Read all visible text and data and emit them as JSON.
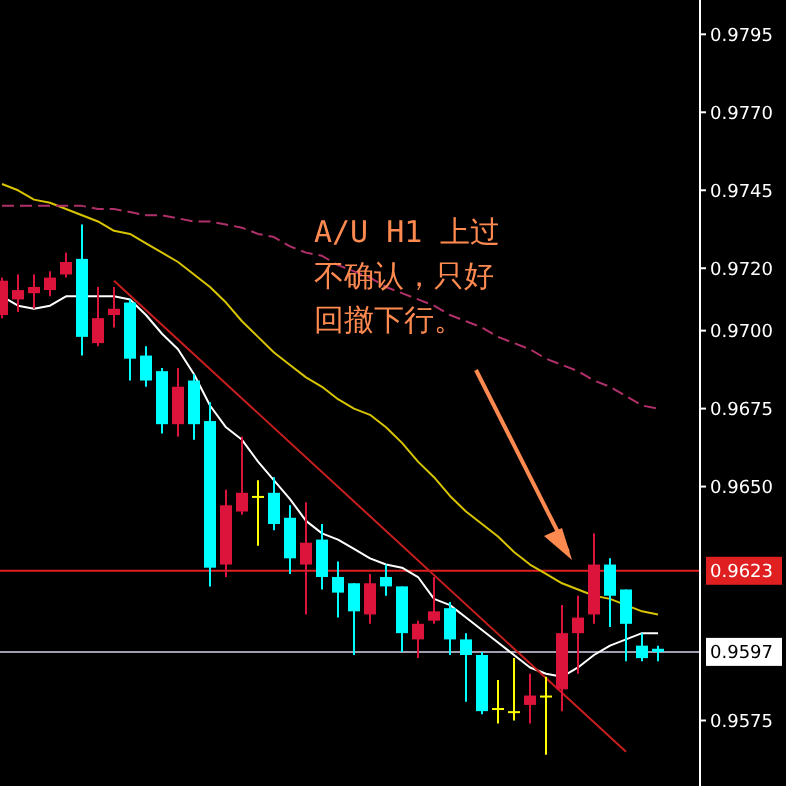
{
  "chart_data": {
    "type": "candlestick",
    "categories": [
      null,
      null,
      null,
      null,
      null,
      null,
      null,
      null,
      null,
      null,
      null,
      null,
      null,
      null,
      null,
      null,
      null,
      null,
      null,
      null,
      null,
      null,
      null,
      null,
      null,
      null,
      null,
      null,
      null,
      null,
      null,
      null,
      null,
      null,
      null,
      null,
      null,
      null,
      null,
      null,
      null,
      null
    ],
    "ohlc": [
      [
        0.9705,
        0.9717,
        0.9704,
        0.9716
      ],
      [
        0.971,
        0.9718,
        0.9706,
        0.9713
      ],
      [
        0.9712,
        0.9718,
        0.9707,
        0.9714
      ],
      [
        0.9713,
        0.9719,
        0.9711,
        0.9717
      ],
      [
        0.9718,
        0.9725,
        0.9717,
        0.9722
      ],
      [
        0.9723,
        0.9734,
        0.9692,
        0.9698
      ],
      [
        0.9696,
        0.9714,
        0.9695,
        0.9704
      ],
      [
        0.9705,
        0.9714,
        0.9701,
        0.9707
      ],
      [
        0.9709,
        0.971,
        0.9684,
        0.9691
      ],
      [
        0.9692,
        0.9695,
        0.9682,
        0.9684
      ],
      [
        0.9687,
        0.9688,
        0.9667,
        0.967
      ],
      [
        0.967,
        0.9688,
        0.9666,
        0.9682
      ],
      [
        0.9684,
        0.9686,
        0.9665,
        0.967
      ],
      [
        0.9671,
        0.9677,
        0.9618,
        0.9624
      ],
      [
        0.9625,
        0.9649,
        0.9621,
        0.9644
      ],
      [
        0.9642,
        0.9666,
        0.9641,
        0.9648
      ],
      [
        0.9647,
        0.9652,
        0.9631,
        0.9647
      ],
      [
        0.9648,
        0.9653,
        0.9636,
        0.9638
      ],
      [
        0.964,
        0.9644,
        0.9622,
        0.9627
      ],
      [
        0.9625,
        0.9645,
        0.9609,
        0.9632
      ],
      [
        0.9633,
        0.9638,
        0.9617,
        0.9621
      ],
      [
        0.9621,
        0.9626,
        0.9608,
        0.9616
      ],
      [
        0.9619,
        0.9619,
        0.9596,
        0.961
      ],
      [
        0.9609,
        0.9622,
        0.9606,
        0.9619
      ],
      [
        0.9621,
        0.9625,
        0.9615,
        0.9618
      ],
      [
        0.9618,
        0.9618,
        0.9597,
        0.9603
      ],
      [
        0.9601,
        0.9607,
        0.9595,
        0.9606
      ],
      [
        0.9607,
        0.9621,
        0.9606,
        0.961
      ],
      [
        0.9611,
        0.9613,
        0.9596,
        0.9601
      ],
      [
        0.9601,
        0.9603,
        0.9581,
        0.9596
      ],
      [
        0.9596,
        0.9597,
        0.9577,
        0.9578
      ],
      [
        0.9579,
        0.9588,
        0.9574,
        0.9579
      ],
      [
        0.9578,
        0.9595,
        0.9575,
        0.9578
      ],
      [
        0.958,
        0.959,
        0.9574,
        0.9583
      ],
      [
        0.9583,
        0.9589,
        0.9564,
        0.9583
      ],
      [
        0.9585,
        0.9612,
        0.9578,
        0.9603
      ],
      [
        0.9603,
        0.9615,
        0.959,
        0.9608
      ],
      [
        0.9609,
        0.9635,
        0.9606,
        0.9625
      ],
      [
        0.9625,
        0.9627,
        0.9605,
        0.9615
      ],
      [
        0.9617,
        0.9617,
        0.9594,
        0.9606
      ],
      [
        0.9599,
        0.9603,
        0.9594,
        0.9595
      ],
      [
        0.9598,
        0.9599,
        0.9594,
        0.9597
      ]
    ],
    "colors": [
      "#dc143c",
      "#dc143c",
      "#dc143c",
      "#dc143c",
      "#dc143c",
      "#00ffff",
      "#dc143c",
      "#dc143c",
      "#00ffff",
      "#00ffff",
      "#00ffff",
      "#dc143c",
      "#00ffff",
      "#00ffff",
      "#dc143c",
      "#dc143c",
      "#ffff00",
      "#00ffff",
      "#00ffff",
      "#dc143c",
      "#00ffff",
      "#00ffff",
      "#00ffff",
      "#dc143c",
      "#00ffff",
      "#00ffff",
      "#dc143c",
      "#dc143c",
      "#00ffff",
      "#00ffff",
      "#00ffff",
      "#ffff00",
      "#ffff00",
      "#dc143c",
      "#ffff00",
      "#dc143c",
      "#dc143c",
      "#dc143c",
      "#00ffff",
      "#00ffff",
      "#00ffff",
      "#00ffff"
    ],
    "series": [
      {
        "type": "line",
        "color": "#ffffff",
        "values": [
          0.9711,
          0.9708,
          0.9707,
          0.9708,
          0.9711,
          0.9711,
          0.9711,
          0.9711,
          0.971,
          0.9705,
          0.9699,
          0.9694,
          0.9686,
          0.9676,
          0.9669,
          0.9665,
          0.9658,
          0.9652,
          0.9646,
          0.9639,
          0.9635,
          0.9633,
          0.963,
          0.9627,
          0.9625,
          0.9624,
          0.9621,
          0.9614,
          0.9612,
          0.9608,
          0.9604,
          0.96,
          0.9596,
          0.9592,
          0.959,
          0.9589,
          0.9592,
          0.9596,
          0.9599,
          0.9601,
          0.9603,
          0.9603
        ]
      },
      {
        "type": "line",
        "color": "#d8c400",
        "values": [
          0.9747,
          0.9745,
          0.9742,
          0.9741,
          0.9739,
          0.9737,
          0.9735,
          0.9732,
          0.9731,
          0.9728,
          0.9725,
          0.9722,
          0.9718,
          0.9714,
          0.9709,
          0.9703,
          0.9698,
          0.9693,
          0.9689,
          0.9685,
          0.9682,
          0.9678,
          0.9675,
          0.9673,
          0.9669,
          0.9664,
          0.9658,
          0.9653,
          0.9647,
          0.9642,
          0.9638,
          0.9634,
          0.9629,
          0.9625,
          0.9622,
          0.9619,
          0.9617,
          0.9615,
          0.9614,
          0.9612,
          0.961,
          0.9609
        ]
      },
      {
        "type": "line",
        "color": "#b0306a",
        "line_style": "dashed",
        "values": [
          0.974,
          0.974,
          0.974,
          0.974,
          0.974,
          0.974,
          0.9739,
          0.9739,
          0.9738,
          0.9737,
          0.9737,
          0.9736,
          0.9735,
          0.9735,
          0.9734,
          0.9733,
          0.9731,
          0.973,
          0.9727,
          0.9725,
          0.9724,
          0.9721,
          0.9719,
          0.9717,
          0.9714,
          0.9712,
          0.971,
          0.9708,
          0.9705,
          0.9703,
          0.9701,
          0.9698,
          0.9696,
          0.9694,
          0.9691,
          0.9689,
          0.9687,
          0.9684,
          0.9682,
          0.9679,
          0.9676,
          0.9675
        ]
      },
      {
        "type": "line",
        "color": "#c81e1e",
        "values": [
          null,
          null,
          null,
          null,
          null,
          null,
          null,
          0.9716,
          null,
          null,
          null,
          null,
          null,
          null,
          null,
          null,
          null,
          null,
          null,
          null,
          null,
          null,
          null,
          null,
          null,
          null,
          null,
          null,
          null,
          null,
          null,
          null,
          null,
          null,
          null,
          null,
          null,
          null,
          null,
          0.9565,
          null,
          null
        ]
      }
    ],
    "ylim": [
      0.9554,
      0.9806
    ],
    "yticks": [
      0.9795,
      {
        "value": 0.977,
        "label": "0.9770"
      },
      0.9745,
      {
        "value": 0.972,
        "label": "0.9720"
      },
      {
        "value": 0.97,
        "label": "0.9700"
      },
      0.9675,
      {
        "value": 0.965,
        "label": "0.9650"
      },
      0.9575
    ],
    "ref_lines": [
      {
        "axis": "y",
        "value": 0.9623,
        "label": "0.9623",
        "color": "#e02020"
      },
      {
        "axis": "y",
        "value": 0.9597,
        "label": "0.9597",
        "color": "#a0a0b0"
      }
    ],
    "annotations": [
      "A/U H1 上过",
      "不确认，只好",
      "回撤下行。"
    ],
    "tick_labels": "y",
    "grid": false
  }
}
